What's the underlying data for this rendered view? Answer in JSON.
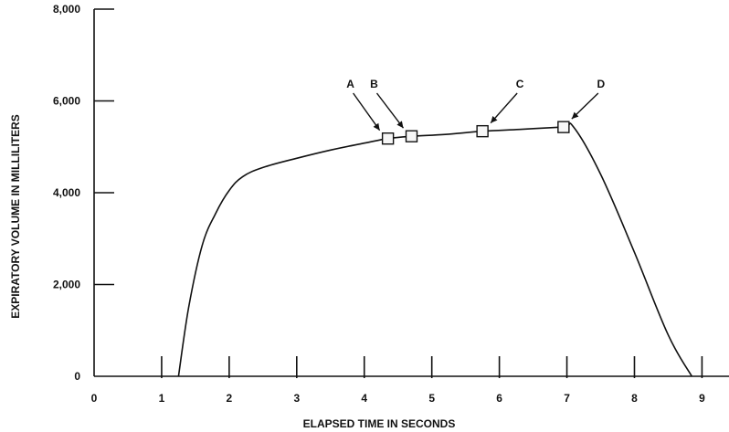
{
  "chart_data": {
    "type": "line",
    "title": "",
    "xlabel": "ELAPSED TIME IN SECONDS",
    "ylabel": "EXPIRATORY VOLUME IN MILLILITERS",
    "xlim": [
      0,
      9.4
    ],
    "ylim": [
      0,
      8000
    ],
    "x_ticks": [
      {
        "value": 0,
        "label": "0"
      },
      {
        "value": 1,
        "label": "1"
      },
      {
        "value": 2,
        "label": "2"
      },
      {
        "value": 3,
        "label": "3"
      },
      {
        "value": 4,
        "label": "4"
      },
      {
        "value": 5,
        "label": "5"
      },
      {
        "value": 6,
        "label": "6"
      },
      {
        "value": 7,
        "label": "7"
      },
      {
        "value": 8,
        "label": "8"
      },
      {
        "value": 9,
        "label": "9"
      }
    ],
    "y_ticks": [
      {
        "value": 0,
        "label": "0"
      },
      {
        "value": 2000,
        "label": "2,000"
      },
      {
        "value": 4000,
        "label": "4,000"
      },
      {
        "value": 6000,
        "label": "6,000"
      },
      {
        "value": 8000,
        "label": "8,000"
      }
    ],
    "grid": false,
    "series": [
      {
        "x": [
          1.25,
          1.4,
          1.6,
          1.8,
          2.0,
          2.2,
          2.5,
          3.0,
          3.5,
          4.0,
          4.35,
          4.7,
          5.2,
          5.75,
          6.3,
          6.95,
          7.1,
          7.5,
          8.0,
          8.5,
          8.85
        ],
        "y": [
          0,
          1500,
          2850,
          3550,
          4050,
          4350,
          4550,
          4750,
          4930,
          5080,
          5180,
          5230,
          5270,
          5340,
          5380,
          5430,
          5430,
          4400,
          2700,
          900,
          0
        ]
      }
    ],
    "markers": [
      {
        "label": "A",
        "x": 4.35,
        "y": 5180
      },
      {
        "label": "B",
        "x": 4.7,
        "y": 5230
      },
      {
        "label": "C",
        "x": 5.75,
        "y": 5340
      },
      {
        "label": "D",
        "x": 6.95,
        "y": 5430
      }
    ],
    "colors": {
      "ink": "#111111",
      "marker_fill": "#f7f7f7",
      "background": "#ffffff"
    }
  }
}
